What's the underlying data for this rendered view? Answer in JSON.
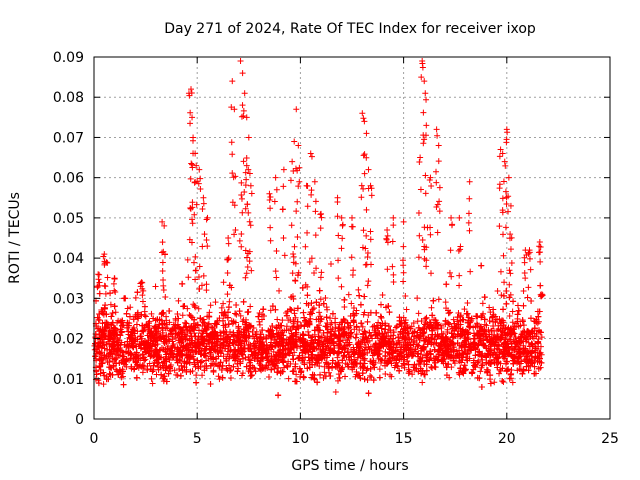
{
  "chart_data": {
    "type": "scatter",
    "title": "Day 271 of 2024, Rate Of TEC Index for receiver ixop",
    "xlabel": "GPS time / hours",
    "ylabel": "ROTI / TECUs",
    "xlim": [
      0,
      25
    ],
    "ylim": [
      0,
      0.09
    ],
    "xticks": [
      0,
      5,
      10,
      15,
      20,
      25
    ],
    "yticks": [
      0,
      0.01,
      0.02,
      0.03,
      0.04,
      0.05,
      0.06,
      0.07,
      0.08,
      0.09
    ],
    "xtick_labels": [
      "0",
      "5",
      "10",
      "15",
      "20",
      "25"
    ],
    "ytick_labels": [
      "0",
      "0.01",
      "0.02",
      "0.03",
      "0.04",
      "0.05",
      "0.06",
      "0.07",
      "0.08",
      "0.09"
    ],
    "grid": true,
    "marker": "+",
    "marker_color": "#ff0000",
    "series": [
      {
        "time_range_hours": [
          0,
          21.7
        ],
        "typical_range": [
          0.006,
          0.03
        ],
        "points_sample": [
          [
            0.2,
            0.036
          ],
          [
            0.5,
            0.041
          ],
          [
            0.6,
            0.039
          ],
          [
            1.0,
            0.035
          ],
          [
            1.5,
            0.03
          ],
          [
            2.3,
            0.034
          ],
          [
            3.3,
            0.049
          ],
          [
            3.4,
            0.048
          ],
          [
            4.6,
            0.081
          ],
          [
            4.7,
            0.082
          ],
          [
            4.75,
            0.075
          ],
          [
            4.8,
            0.07
          ],
          [
            4.9,
            0.066
          ],
          [
            4.95,
            0.063
          ],
          [
            5.1,
            0.062
          ],
          [
            5.3,
            0.055
          ],
          [
            5.5,
            0.05
          ],
          [
            6.5,
            0.045
          ],
          [
            6.7,
            0.084
          ],
          [
            6.8,
            0.077
          ],
          [
            7.1,
            0.089
          ],
          [
            7.2,
            0.086
          ],
          [
            7.3,
            0.081
          ],
          [
            7.4,
            0.075
          ],
          [
            7.5,
            0.07
          ],
          [
            7.4,
            0.063
          ],
          [
            7.6,
            0.058
          ],
          [
            8.5,
            0.056
          ],
          [
            8.8,
            0.06
          ],
          [
            9.2,
            0.062
          ],
          [
            9.6,
            0.064
          ],
          [
            9.7,
            0.069
          ],
          [
            9.8,
            0.077
          ],
          [
            9.9,
            0.068
          ],
          [
            10.3,
            0.058
          ],
          [
            10.5,
            0.066
          ],
          [
            10.7,
            0.059
          ],
          [
            11.0,
            0.051
          ],
          [
            11.8,
            0.055
          ],
          [
            12.0,
            0.05
          ],
          [
            12.5,
            0.05
          ],
          [
            13.0,
            0.076
          ],
          [
            13.1,
            0.074
          ],
          [
            13.2,
            0.071
          ],
          [
            13.3,
            0.062
          ],
          [
            13.4,
            0.058
          ],
          [
            14.2,
            0.047
          ],
          [
            14.5,
            0.05
          ],
          [
            15.0,
            0.049
          ],
          [
            15.8,
            0.065
          ],
          [
            15.9,
            0.089
          ],
          [
            16.0,
            0.084
          ],
          [
            16.05,
            0.081
          ],
          [
            16.1,
            0.073
          ],
          [
            16.3,
            0.06
          ],
          [
            16.6,
            0.072
          ],
          [
            16.7,
            0.068
          ],
          [
            17.3,
            0.05
          ],
          [
            17.7,
            0.05
          ],
          [
            18.2,
            0.059
          ],
          [
            19.7,
            0.067
          ],
          [
            19.8,
            0.066
          ],
          [
            19.9,
            0.064
          ],
          [
            20.0,
            0.072
          ],
          [
            20.1,
            0.06
          ],
          [
            20.2,
            0.053
          ],
          [
            20.9,
            0.042
          ],
          [
            21.1,
            0.042
          ],
          [
            21.6,
            0.044
          ],
          [
            21.7,
            0.031
          ]
        ]
      }
    ]
  }
}
